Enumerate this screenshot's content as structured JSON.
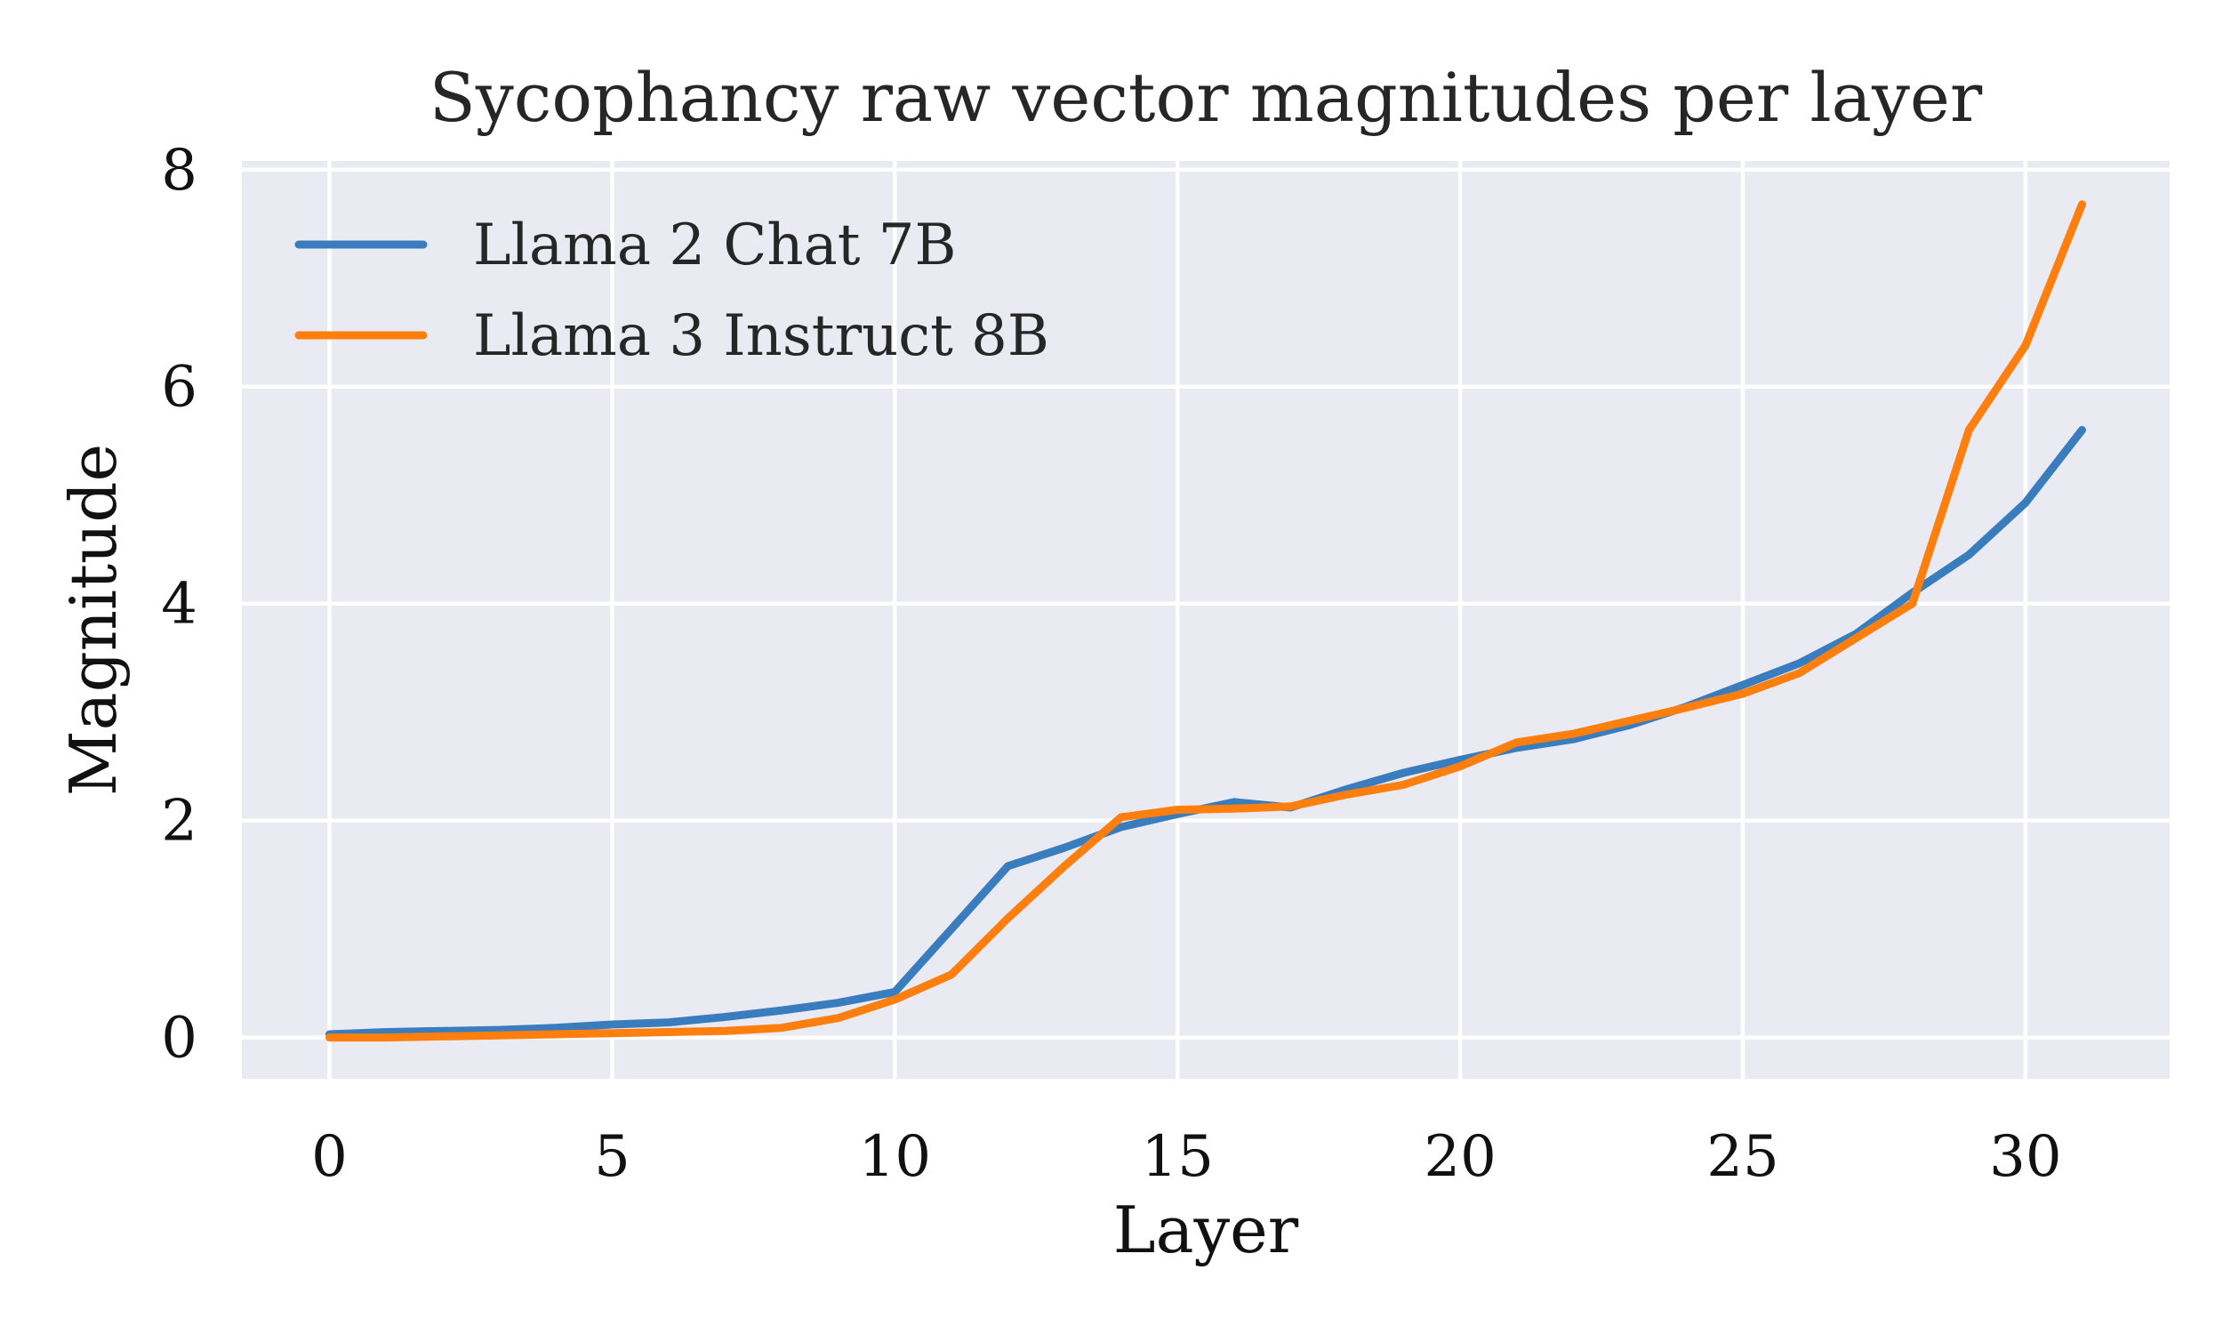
{
  "chart_data": {
    "type": "line",
    "title": "Sycophancy raw vector magnitudes per layer",
    "xlabel": "Layer",
    "ylabel": "Magnitude",
    "xlim": [
      -1.55,
      32.55
    ],
    "ylim": [
      -0.38,
      8.08
    ],
    "xticks": [
      "0",
      "5",
      "10",
      "15",
      "20",
      "25",
      "30"
    ],
    "xtick_values": [
      0,
      5,
      10,
      15,
      20,
      25,
      30
    ],
    "yticks": [
      "0",
      "2",
      "4",
      "6",
      "8"
    ],
    "ytick_values": [
      0,
      2,
      4,
      6,
      8
    ],
    "grid": true,
    "legend_position": "top-left",
    "background": "#eaeaf2",
    "x": [
      0,
      1,
      2,
      3,
      4,
      5,
      6,
      7,
      8,
      9,
      10,
      11,
      12,
      13,
      14,
      15,
      16,
      17,
      18,
      19,
      20,
      21,
      22,
      23,
      24,
      25,
      26,
      27,
      28,
      29,
      30,
      31
    ],
    "series": [
      {
        "name": "Llama 2 Chat 7B",
        "color": "#3a7dbf",
        "values": [
          0.03,
          0.05,
          0.06,
          0.07,
          0.09,
          0.12,
          0.14,
          0.19,
          0.25,
          0.32,
          0.42,
          1.0,
          1.58,
          1.75,
          1.94,
          2.06,
          2.17,
          2.12,
          2.29,
          2.44,
          2.56,
          2.67,
          2.75,
          2.88,
          3.05,
          3.25,
          3.45,
          3.72,
          4.1,
          4.45,
          4.93,
          5.6
        ]
      },
      {
        "name": "Llama 3 Instruct 8B",
        "color": "#ff7f0e",
        "values": [
          0.0,
          0.0,
          0.01,
          0.02,
          0.03,
          0.04,
          0.05,
          0.06,
          0.09,
          0.18,
          0.35,
          0.58,
          1.1,
          1.58,
          2.03,
          2.1,
          2.11,
          2.13,
          2.24,
          2.33,
          2.5,
          2.72,
          2.8,
          2.92,
          3.04,
          3.17,
          3.36,
          3.68,
          4.0,
          5.6,
          6.38,
          7.68
        ]
      }
    ]
  }
}
